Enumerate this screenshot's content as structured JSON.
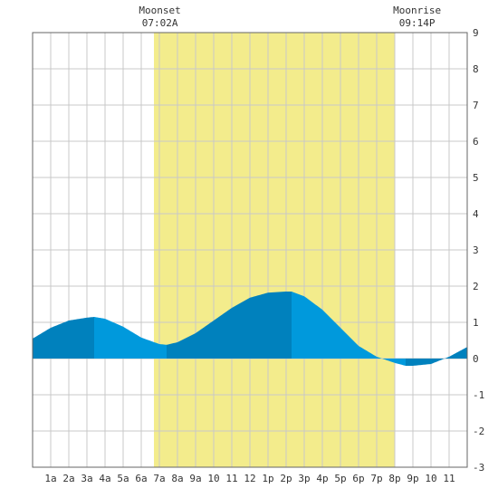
{
  "chart_data": {
    "type": "area",
    "title": "",
    "xlabel": "",
    "ylabel": "",
    "xlim": [
      0,
      24
    ],
    "ylim": [
      -3,
      9
    ],
    "grid": true,
    "x_ticks": [
      {
        "x": 1,
        "label": "1a"
      },
      {
        "x": 2,
        "label": "2a"
      },
      {
        "x": 3,
        "label": "3a"
      },
      {
        "x": 4,
        "label": "4a"
      },
      {
        "x": 5,
        "label": "5a"
      },
      {
        "x": 6,
        "label": "6a"
      },
      {
        "x": 7,
        "label": "7a"
      },
      {
        "x": 8,
        "label": "8a"
      },
      {
        "x": 9,
        "label": "9a"
      },
      {
        "x": 10,
        "label": "10"
      },
      {
        "x": 11,
        "label": "11"
      },
      {
        "x": 12,
        "label": "12"
      },
      {
        "x": 13,
        "label": "1p"
      },
      {
        "x": 14,
        "label": "2p"
      },
      {
        "x": 15,
        "label": "3p"
      },
      {
        "x": 16,
        "label": "4p"
      },
      {
        "x": 17,
        "label": "5p"
      },
      {
        "x": 18,
        "label": "6p"
      },
      {
        "x": 19,
        "label": "7p"
      },
      {
        "x": 20,
        "label": "8p"
      },
      {
        "x": 21,
        "label": "9p"
      },
      {
        "x": 22,
        "label": "10"
      },
      {
        "x": 23,
        "label": "11"
      }
    ],
    "y_ticks": [
      -3,
      -2,
      -1,
      0,
      1,
      2,
      3,
      4,
      5,
      6,
      7,
      8,
      9
    ],
    "daylight": {
      "start": 6.7,
      "end": 20.0
    },
    "series": [
      {
        "x": [
          0,
          1,
          2,
          3,
          3.4,
          4,
          5,
          6,
          7,
          7.4,
          8,
          9,
          10,
          11,
          12,
          13,
          14,
          14.3,
          15,
          16,
          17,
          18,
          19,
          20,
          20.6,
          21,
          22,
          23,
          24
        ],
        "values": [
          0.55,
          0.85,
          1.05,
          1.13,
          1.15,
          1.1,
          0.88,
          0.58,
          0.4,
          0.38,
          0.45,
          0.7,
          1.05,
          1.4,
          1.68,
          1.82,
          1.85,
          1.85,
          1.72,
          1.35,
          0.85,
          0.35,
          0.05,
          -0.12,
          -0.2,
          -0.2,
          -0.15,
          0.05,
          0.32
        ],
        "segments": [
          {
            "from": 0,
            "to": 3.4,
            "color": "#0081bd"
          },
          {
            "from": 3.4,
            "to": 7.4,
            "color": "#0099dc"
          },
          {
            "from": 7.4,
            "to": 14.3,
            "color": "#0081bd"
          },
          {
            "from": 14.3,
            "to": 20.6,
            "color": "#0099dc"
          },
          {
            "from": 20.6,
            "to": 24,
            "color": "#0081bd"
          }
        ]
      }
    ],
    "annotations": [
      {
        "label": "Moonset",
        "time": "07:02A",
        "x": 7.03
      },
      {
        "label": "Moonrise",
        "time": "09:14P",
        "x": 21.23
      }
    ],
    "colors": {
      "daylight": "#f3ec8c",
      "grid": "#c8c8c8",
      "background": "#ffffff",
      "axis": "#666666"
    }
  }
}
